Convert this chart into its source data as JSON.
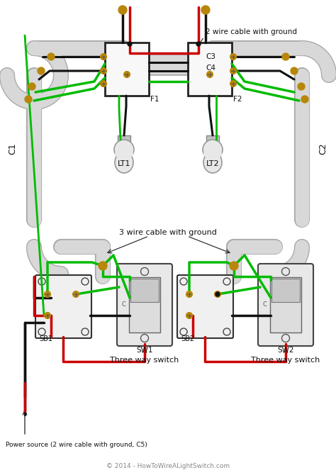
{
  "bg_color": "#ffffff",
  "watermark": "© 2014 - HowToWireALightSwitch.com",
  "label_2wire": "2 wire cable with ground",
  "label_3wire": "3 wire cable with ground",
  "label_c3": "C3",
  "label_c4": "C4",
  "label_f1": "F1",
  "label_f2": "F2",
  "label_c1": "C1",
  "label_c2": "C2",
  "label_lt1": "LT1",
  "label_lt2": "LT2",
  "label_sb1": "SB1",
  "label_sb2": "SB2",
  "label_sw1": "SW1",
  "label_sw2": "SW2",
  "label_switch1": "Three way switch",
  "label_switch2": "Three way switch",
  "label_power": "Power source (2 wire cable with ground, C5)",
  "wire_black": "#111111",
  "wire_red": "#cc0000",
  "wire_green": "#00bb00",
  "wire_bare": "#b8860b",
  "conduit_color": "#d8d8d8",
  "conduit_stroke": "#aaaaaa",
  "box_fill": "#f5f5f5",
  "box_stroke": "#333333",
  "text_color": "#111111",
  "arrow_color": "#222222"
}
